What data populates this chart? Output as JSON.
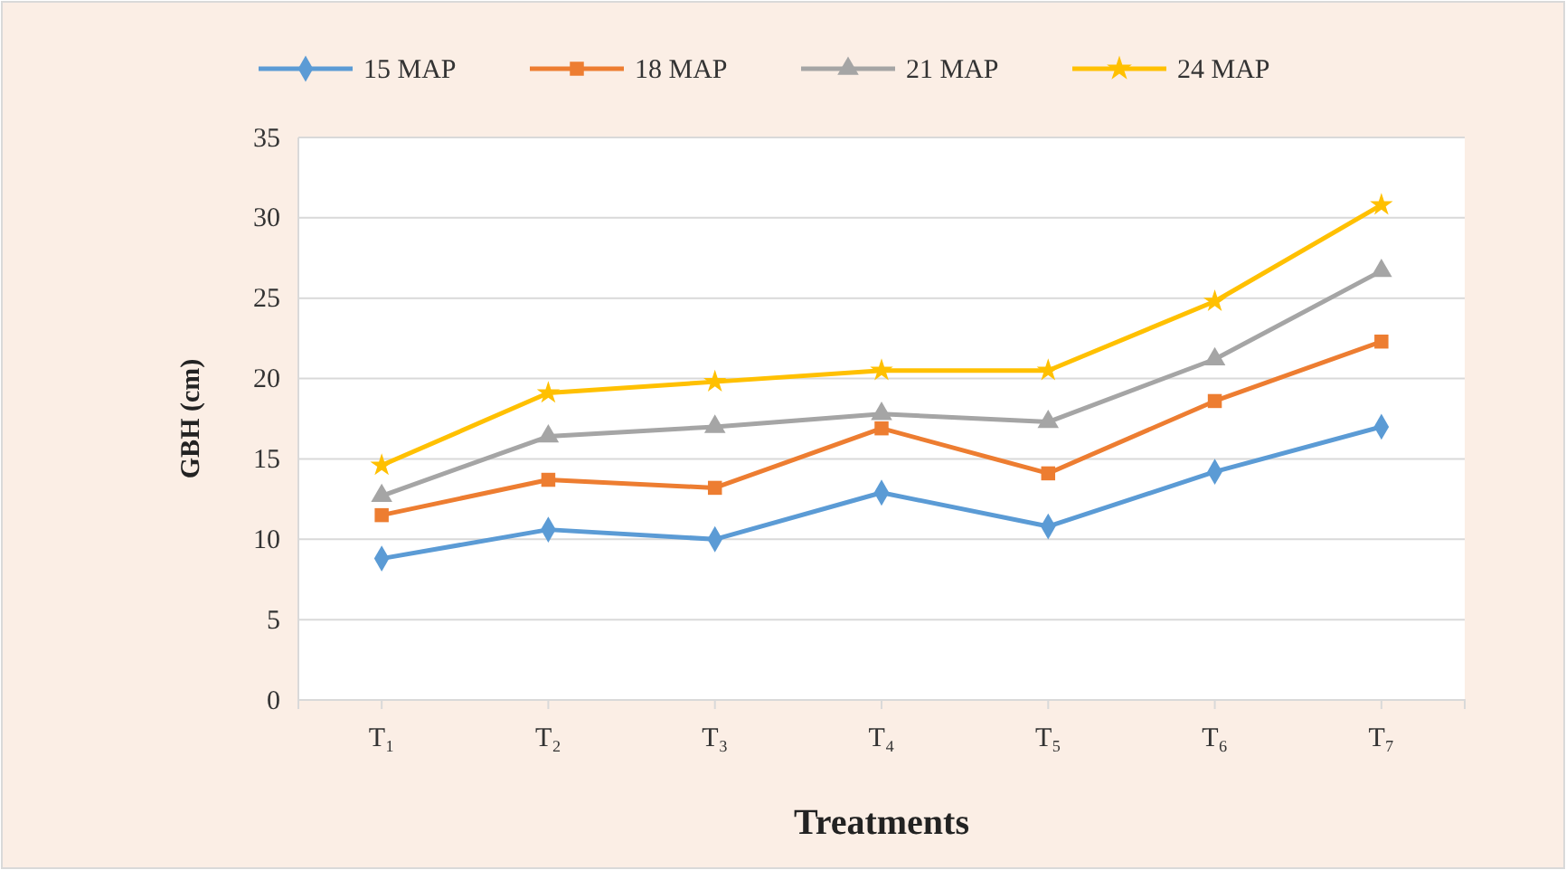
{
  "chart_data": {
    "type": "line",
    "xlabel": "Treatments",
    "ylabel": "GBH (cm)",
    "categories": [
      "T₁",
      "T₂",
      "T₃",
      "T₄",
      "T₅",
      "T₆",
      "T₇"
    ],
    "ylim": [
      0,
      35
    ],
    "yticks": [
      0,
      5,
      10,
      15,
      20,
      25,
      30,
      35
    ],
    "grid": "y",
    "legend": "top",
    "series": [
      {
        "name": "15 MAP",
        "color": "#5b9bd5",
        "marker": "diamond",
        "values": [
          8.8,
          10.6,
          10.0,
          12.9,
          10.8,
          14.2,
          17.0
        ]
      },
      {
        "name": "18 MAP",
        "color": "#ed7d31",
        "marker": "square",
        "values": [
          11.5,
          13.7,
          13.2,
          16.9,
          14.1,
          18.6,
          22.3
        ]
      },
      {
        "name": "21 MAP",
        "color": "#a5a5a5",
        "marker": "triangle",
        "values": [
          12.7,
          16.4,
          17.0,
          17.8,
          17.3,
          21.2,
          26.7
        ]
      },
      {
        "name": "24 MAP",
        "color": "#ffc000",
        "marker": "star",
        "values": [
          14.6,
          19.1,
          19.8,
          20.5,
          20.5,
          24.8,
          30.8
        ]
      }
    ]
  }
}
